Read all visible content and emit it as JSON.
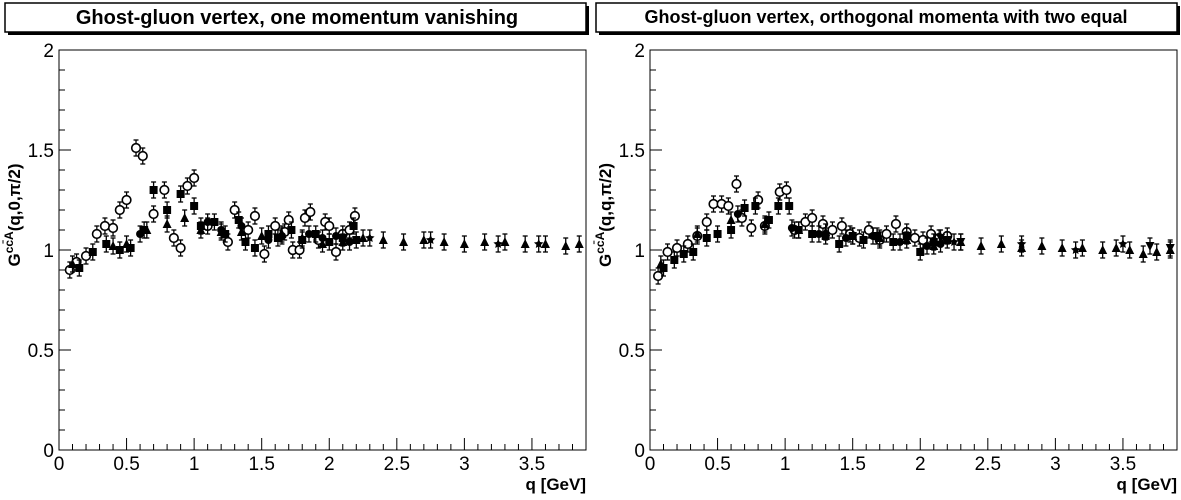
{
  "chart_data": [
    {
      "type": "scatter",
      "title": "Ghost-gluon vertex, one momentum vanishing",
      "xlabel": "q [GeV]",
      "ylabel_main": "G",
      "ylabel_sup": "cc̄A",
      "ylabel_args": "(q,0,π/2)",
      "xlim": [
        0,
        3.9
      ],
      "ylim": [
        0,
        2
      ],
      "x_ticks": [
        "0",
        "0.5",
        "1",
        "1.5",
        "2",
        "2.5",
        "3",
        "3.5"
      ],
      "y_ticks": [
        "0",
        "0.5",
        "1",
        "1.5",
        "2"
      ],
      "grid": false,
      "series": [
        {
          "marker": "open-circle",
          "points": [
            [
              0.08,
              0.9
            ],
            [
              0.13,
              0.94
            ],
            [
              0.2,
              0.97
            ],
            [
              0.28,
              1.08
            ],
            [
              0.34,
              1.12
            ],
            [
              0.4,
              1.11
            ],
            [
              0.45,
              1.2
            ],
            [
              0.5,
              1.25
            ],
            [
              0.57,
              1.51
            ],
            [
              0.62,
              1.47
            ],
            [
              0.7,
              1.18
            ],
            [
              0.78,
              1.3
            ],
            [
              0.85,
              1.06
            ],
            [
              0.9,
              1.01
            ],
            [
              0.95,
              1.32
            ],
            [
              1.0,
              1.36
            ],
            [
              1.1,
              1.12
            ],
            [
              1.25,
              1.04
            ],
            [
              1.3,
              1.2
            ],
            [
              1.4,
              1.1
            ],
            [
              1.45,
              1.17
            ],
            [
              1.52,
              0.98
            ],
            [
              1.6,
              1.12
            ],
            [
              1.67,
              1.09
            ],
            [
              1.7,
              1.15
            ],
            [
              1.73,
              1.0
            ],
            [
              1.78,
              1.0
            ],
            [
              1.82,
              1.16
            ],
            [
              1.86,
              1.19
            ],
            [
              1.92,
              1.05
            ],
            [
              1.97,
              1.14
            ],
            [
              2.0,
              1.12
            ],
            [
              2.05,
              0.99
            ],
            [
              2.1,
              1.08
            ],
            [
              2.15,
              1.1
            ],
            [
              2.19,
              1.17
            ]
          ]
        },
        {
          "marker": "filled-square",
          "points": [
            [
              0.15,
              0.91
            ],
            [
              0.25,
              0.99
            ],
            [
              0.35,
              1.03
            ],
            [
              0.45,
              1.0
            ],
            [
              0.53,
              1.01
            ],
            [
              0.63,
              1.1
            ],
            [
              0.7,
              1.3
            ],
            [
              0.8,
              1.2
            ],
            [
              0.9,
              1.28
            ],
            [
              1.0,
              1.22
            ],
            [
              1.05,
              1.12
            ],
            [
              1.15,
              1.14
            ],
            [
              1.23,
              1.08
            ],
            [
              1.33,
              1.15
            ],
            [
              1.38,
              1.04
            ],
            [
              1.45,
              1.01
            ],
            [
              1.55,
              1.08
            ],
            [
              1.62,
              1.06
            ],
            [
              1.72,
              1.1
            ],
            [
              1.8,
              1.05
            ],
            [
              1.9,
              1.08
            ],
            [
              2.0,
              1.04
            ],
            [
              2.1,
              1.06
            ],
            [
              2.18,
              1.12
            ],
            [
              2.2,
              1.05
            ]
          ]
        },
        {
          "marker": "filled-circle",
          "points": [
            [
              0.6,
              1.08
            ],
            [
              1.1,
              1.14
            ],
            [
              1.2,
              1.1
            ],
            [
              1.35,
              1.12
            ],
            [
              1.55,
              1.05
            ],
            [
              1.65,
              1.07
            ],
            [
              1.85,
              1.08
            ],
            [
              1.95,
              1.06
            ],
            [
              2.05,
              1.07
            ],
            [
              2.15,
              1.04
            ]
          ]
        },
        {
          "marker": "filled-triangle-up",
          "points": [
            [
              0.1,
              0.93
            ],
            [
              0.4,
              1.02
            ],
            [
              0.5,
              1.03
            ],
            [
              0.65,
              1.1
            ],
            [
              0.8,
              1.13
            ],
            [
              0.93,
              1.16
            ],
            [
              1.05,
              1.1
            ],
            [
              1.2,
              1.09
            ],
            [
              1.35,
              1.09
            ],
            [
              1.5,
              1.07
            ],
            [
              1.65,
              1.08
            ],
            [
              1.8,
              1.06
            ],
            [
              1.95,
              1.03
            ],
            [
              2.1,
              1.04
            ],
            [
              2.25,
              1.06
            ],
            [
              2.4,
              1.05
            ],
            [
              2.55,
              1.04
            ],
            [
              2.7,
              1.05
            ],
            [
              2.85,
              1.04
            ],
            [
              3.0,
              1.03
            ],
            [
              3.15,
              1.04
            ],
            [
              3.3,
              1.04
            ],
            [
              3.45,
              1.03
            ],
            [
              3.6,
              1.03
            ],
            [
              3.75,
              1.02
            ],
            [
              3.85,
              1.03
            ]
          ]
        },
        {
          "marker": "filled-star",
          "points": [
            [
              2.3,
              1.06
            ],
            [
              2.75,
              1.05
            ],
            [
              3.25,
              1.03
            ],
            [
              3.55,
              1.03
            ]
          ]
        }
      ]
    },
    {
      "type": "scatter",
      "title": "Ghost-gluon vertex, orthogonal momenta with two equal",
      "xlabel": "q [GeV]",
      "ylabel_main": "G",
      "ylabel_sup": "cc̄A",
      "ylabel_args": "(q,q,π/2)",
      "xlim": [
        0,
        3.9
      ],
      "ylim": [
        0,
        2
      ],
      "x_ticks": [
        "0",
        "0.5",
        "1",
        "1.5",
        "2",
        "2.5",
        "3",
        "3.5"
      ],
      "y_ticks": [
        "0",
        "0.5",
        "1",
        "1.5",
        "2"
      ],
      "grid": false,
      "series": [
        {
          "marker": "open-circle",
          "points": [
            [
              0.06,
              0.87
            ],
            [
              0.13,
              0.99
            ],
            [
              0.2,
              1.01
            ],
            [
              0.28,
              1.03
            ],
            [
              0.35,
              1.07
            ],
            [
              0.42,
              1.14
            ],
            [
              0.47,
              1.23
            ],
            [
              0.53,
              1.23
            ],
            [
              0.58,
              1.22
            ],
            [
              0.64,
              1.33
            ],
            [
              0.68,
              1.16
            ],
            [
              0.75,
              1.11
            ],
            [
              0.8,
              1.25
            ],
            [
              0.85,
              1.12
            ],
            [
              0.96,
              1.29
            ],
            [
              1.01,
              1.3
            ],
            [
              1.07,
              1.1
            ],
            [
              1.15,
              1.14
            ],
            [
              1.2,
              1.16
            ],
            [
              1.28,
              1.13
            ],
            [
              1.35,
              1.1
            ],
            [
              1.42,
              1.12
            ],
            [
              1.48,
              1.08
            ],
            [
              1.55,
              1.06
            ],
            [
              1.62,
              1.1
            ],
            [
              1.7,
              1.05
            ],
            [
              1.75,
              1.08
            ],
            [
              1.82,
              1.13
            ],
            [
              1.9,
              1.09
            ],
            [
              1.96,
              1.06
            ],
            [
              2.02,
              1.05
            ],
            [
              2.08,
              1.08
            ],
            [
              2.14,
              1.06
            ],
            [
              2.2,
              1.07
            ]
          ]
        },
        {
          "marker": "filled-square",
          "points": [
            [
              0.1,
              0.91
            ],
            [
              0.18,
              0.95
            ],
            [
              0.25,
              0.98
            ],
            [
              0.32,
              0.99
            ],
            [
              0.42,
              1.06
            ],
            [
              0.5,
              1.08
            ],
            [
              0.6,
              1.1
            ],
            [
              0.7,
              1.21
            ],
            [
              0.78,
              1.22
            ],
            [
              0.88,
              1.15
            ],
            [
              0.95,
              1.22
            ],
            [
              1.03,
              1.22
            ],
            [
              1.1,
              1.1
            ],
            [
              1.2,
              1.08
            ],
            [
              1.3,
              1.07
            ],
            [
              1.4,
              1.03
            ],
            [
              1.5,
              1.07
            ],
            [
              1.58,
              1.05
            ],
            [
              1.68,
              1.07
            ],
            [
              1.8,
              1.04
            ],
            [
              1.9,
              1.07
            ],
            [
              2.0,
              0.99
            ],
            [
              2.1,
              1.04
            ],
            [
              2.2,
              1.05
            ]
          ]
        },
        {
          "marker": "filled-circle",
          "points": [
            [
              0.65,
              1.18
            ],
            [
              1.05,
              1.11
            ],
            [
              1.25,
              1.08
            ],
            [
              1.45,
              1.06
            ],
            [
              1.65,
              1.07
            ],
            [
              1.85,
              1.04
            ],
            [
              2.05,
              1.02
            ],
            [
              2.15,
              1.03
            ]
          ]
        },
        {
          "marker": "filled-triangle-up",
          "points": [
            [
              0.08,
              0.93
            ],
            [
              0.35,
              1.08
            ],
            [
              0.6,
              1.15
            ],
            [
              0.85,
              1.13
            ],
            [
              1.1,
              1.1
            ],
            [
              1.3,
              1.09
            ],
            [
              1.5,
              1.07
            ],
            [
              1.7,
              1.06
            ],
            [
              1.9,
              1.05
            ],
            [
              2.1,
              1.02
            ],
            [
              2.3,
              1.04
            ],
            [
              2.45,
              1.02
            ],
            [
              2.6,
              1.03
            ],
            [
              2.75,
              1.01
            ],
            [
              2.9,
              1.02
            ],
            [
              3.05,
              1.01
            ],
            [
              3.2,
              1.01
            ],
            [
              3.35,
              1.0
            ],
            [
              3.45,
              1.01
            ],
            [
              3.55,
              1.0
            ],
            [
              3.65,
              0.98
            ],
            [
              3.75,
              0.99
            ],
            [
              3.85,
              1.0
            ]
          ]
        },
        {
          "marker": "filled-star",
          "points": [
            [
              2.25,
              1.04
            ],
            [
              2.75,
              1.03
            ],
            [
              3.15,
              1.0
            ],
            [
              3.5,
              1.03
            ]
          ]
        },
        {
          "marker": "filled-triangle-down",
          "points": [
            [
              2.15,
              1.06
            ],
            [
              2.3,
              1.04
            ],
            [
              3.7,
              1.02
            ],
            [
              3.85,
              1.01
            ]
          ]
        }
      ]
    }
  ]
}
